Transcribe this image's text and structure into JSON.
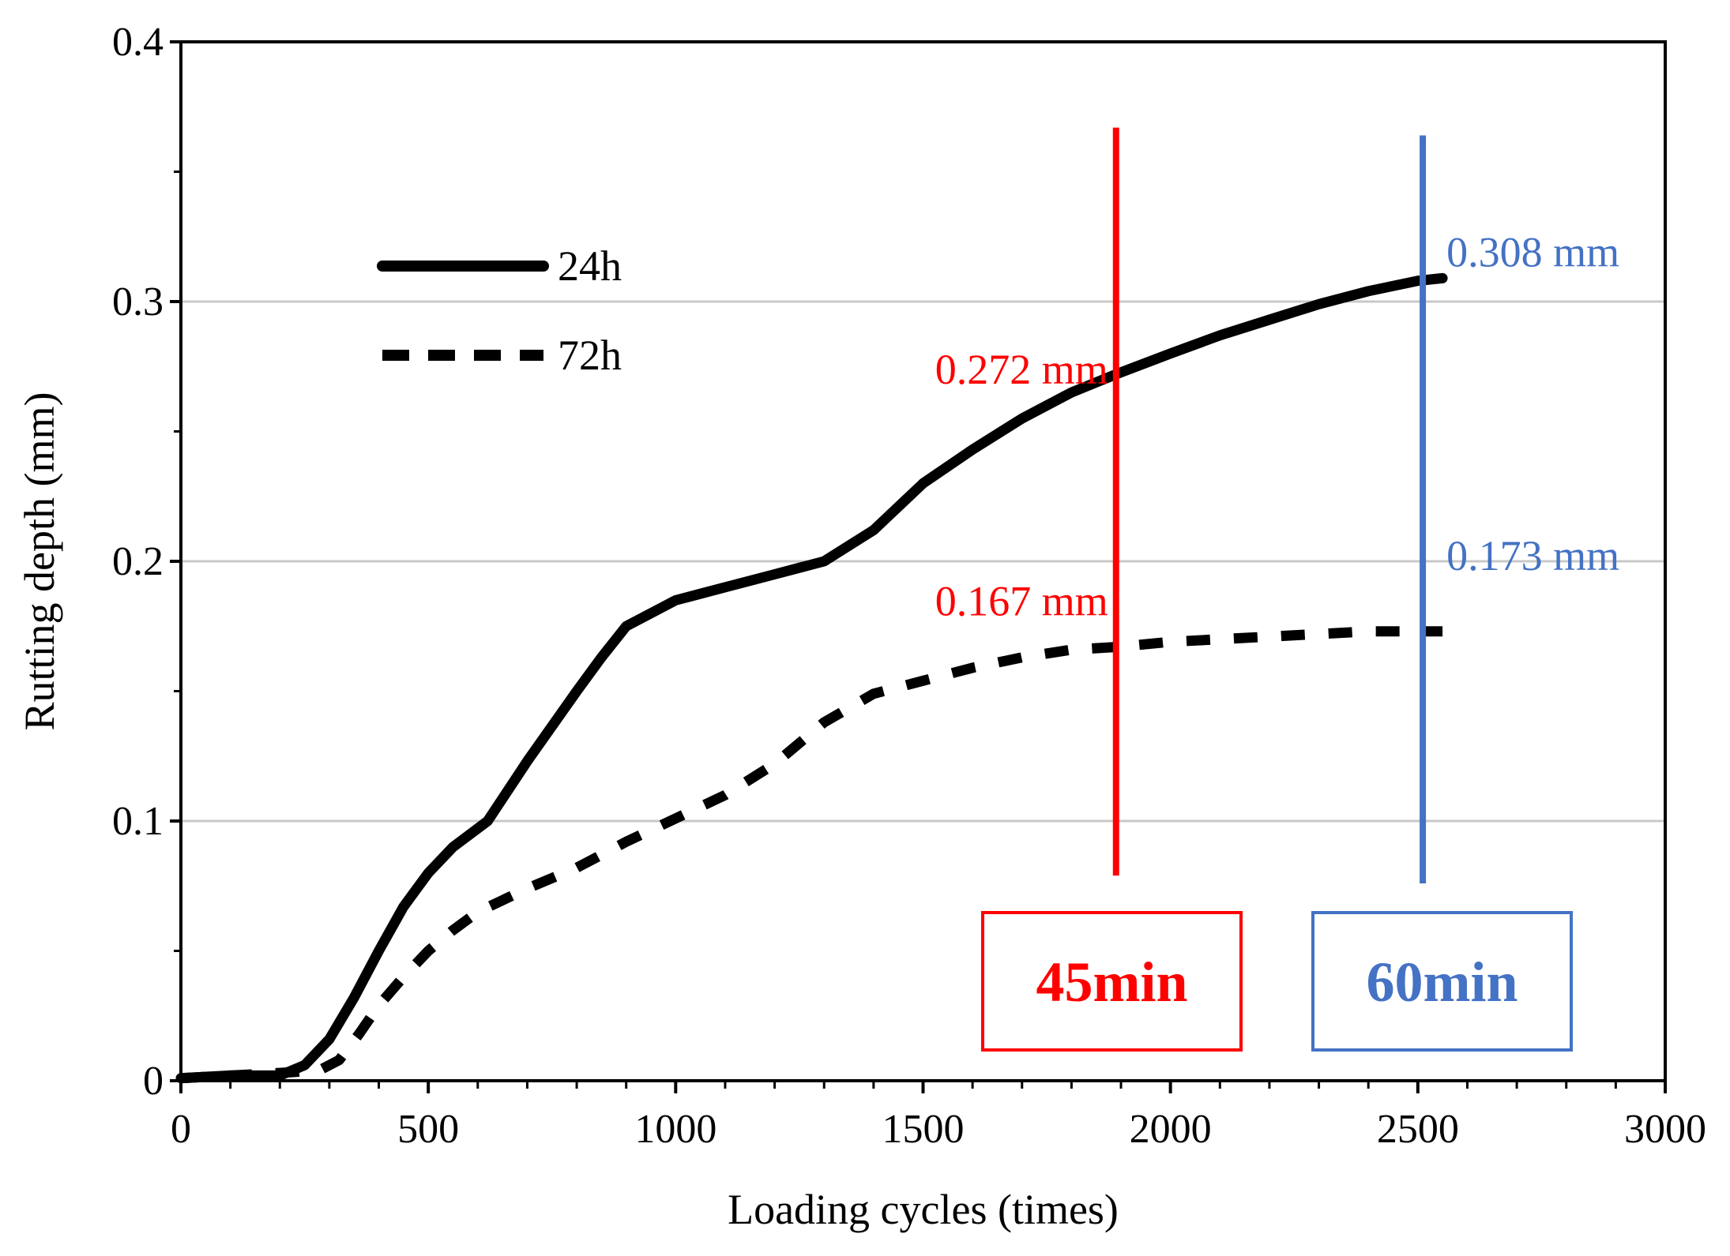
{
  "chart_data": {
    "type": "line",
    "xlabel": "Loading cycles (times)",
    "ylabel": "Rutting depth (mm)",
    "xlim": [
      0,
      3000
    ],
    "ylim": [
      0,
      0.4
    ],
    "x_ticks": [
      0,
      500,
      1000,
      1500,
      2000,
      2500,
      3000
    ],
    "y_ticks": [
      0,
      0.1,
      0.2,
      0.3,
      0.4
    ],
    "x_tick_labels": [
      "0",
      "500",
      "1000",
      "1500",
      "2000",
      "2500",
      "3000"
    ],
    "y_tick_labels": [
      "0",
      "0.1",
      "0.2",
      "0.3",
      "0.4"
    ],
    "gridlines": "horizontal",
    "legend_position": "upper-left",
    "series": [
      {
        "name": "24h",
        "style": "solid",
        "color": "#000000",
        "points": [
          [
            0,
            0.001
          ],
          [
            100,
            0.002
          ],
          [
            200,
            0.002
          ],
          [
            250,
            0.006
          ],
          [
            300,
            0.016
          ],
          [
            350,
            0.032
          ],
          [
            400,
            0.05
          ],
          [
            450,
            0.067
          ],
          [
            500,
            0.08
          ],
          [
            550,
            0.09
          ],
          [
            620,
            0.1
          ],
          [
            700,
            0.123
          ],
          [
            800,
            0.15
          ],
          [
            850,
            0.163
          ],
          [
            900,
            0.175
          ],
          [
            1000,
            0.185
          ],
          [
            1100,
            0.19
          ],
          [
            1200,
            0.195
          ],
          [
            1300,
            0.2
          ],
          [
            1400,
            0.212
          ],
          [
            1500,
            0.23
          ],
          [
            1600,
            0.243
          ],
          [
            1700,
            0.255
          ],
          [
            1800,
            0.265
          ],
          [
            1890,
            0.272
          ],
          [
            2000,
            0.28
          ],
          [
            2100,
            0.287
          ],
          [
            2200,
            0.293
          ],
          [
            2300,
            0.299
          ],
          [
            2400,
            0.304
          ],
          [
            2500,
            0.308
          ],
          [
            2550,
            0.309
          ]
        ]
      },
      {
        "name": "72h",
        "style": "dashed",
        "color": "#000000",
        "points": [
          [
            0,
            0.001
          ],
          [
            100,
            0.002
          ],
          [
            200,
            0.003
          ],
          [
            280,
            0.004
          ],
          [
            320,
            0.008
          ],
          [
            360,
            0.018
          ],
          [
            400,
            0.029
          ],
          [
            450,
            0.04
          ],
          [
            500,
            0.05
          ],
          [
            550,
            0.058
          ],
          [
            600,
            0.065
          ],
          [
            700,
            0.074
          ],
          [
            800,
            0.082
          ],
          [
            900,
            0.092
          ],
          [
            1000,
            0.101
          ],
          [
            1100,
            0.11
          ],
          [
            1200,
            0.122
          ],
          [
            1300,
            0.138
          ],
          [
            1400,
            0.149
          ],
          [
            1500,
            0.154
          ],
          [
            1600,
            0.159
          ],
          [
            1700,
            0.163
          ],
          [
            1800,
            0.166
          ],
          [
            1890,
            0.167
          ],
          [
            2000,
            0.169
          ],
          [
            2100,
            0.17
          ],
          [
            2200,
            0.171
          ],
          [
            2300,
            0.172
          ],
          [
            2400,
            0.173
          ],
          [
            2500,
            0.173
          ],
          [
            2550,
            0.173
          ]
        ]
      }
    ],
    "annotations": [
      {
        "name": "45min",
        "x": 1890,
        "y_range": [
          0.079,
          0.367
        ],
        "color": "#ff0000",
        "label": "45min",
        "values": [
          {
            "text": "0.272 mm",
            "y": 0.272
          },
          {
            "text": "0.167 mm",
            "y": 0.167
          }
        ]
      },
      {
        "name": "60min",
        "x": 2510,
        "y_range": [
          0.076,
          0.364
        ],
        "color": "#4472c4",
        "label": "60min",
        "values": [
          {
            "text": "0.308 mm",
            "y": 0.308
          },
          {
            "text": "0.173 mm",
            "y": 0.173
          }
        ]
      }
    ]
  }
}
